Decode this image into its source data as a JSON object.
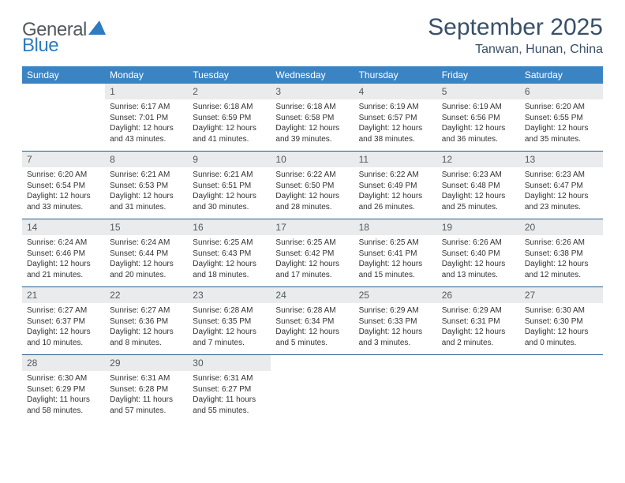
{
  "logo": {
    "part1": "General",
    "part2": "Blue",
    "triangle_color": "#2f7bbf"
  },
  "title": "September 2025",
  "location": "Tanwan, Hunan, China",
  "colors": {
    "header_bg": "#3b84c4",
    "header_text": "#ffffff",
    "daynum_bg": "#e9ebec",
    "week_divider": "#2a5d8a",
    "title_color": "#38506a"
  },
  "day_labels": [
    "Sunday",
    "Monday",
    "Tuesday",
    "Wednesday",
    "Thursday",
    "Friday",
    "Saturday"
  ],
  "weeks": [
    [
      null,
      {
        "n": "1",
        "sr": "Sunrise: 6:17 AM",
        "ss": "Sunset: 7:01 PM",
        "dl": "Daylight: 12 hours and 43 minutes."
      },
      {
        "n": "2",
        "sr": "Sunrise: 6:18 AM",
        "ss": "Sunset: 6:59 PM",
        "dl": "Daylight: 12 hours and 41 minutes."
      },
      {
        "n": "3",
        "sr": "Sunrise: 6:18 AM",
        "ss": "Sunset: 6:58 PM",
        "dl": "Daylight: 12 hours and 39 minutes."
      },
      {
        "n": "4",
        "sr": "Sunrise: 6:19 AM",
        "ss": "Sunset: 6:57 PM",
        "dl": "Daylight: 12 hours and 38 minutes."
      },
      {
        "n": "5",
        "sr": "Sunrise: 6:19 AM",
        "ss": "Sunset: 6:56 PM",
        "dl": "Daylight: 12 hours and 36 minutes."
      },
      {
        "n": "6",
        "sr": "Sunrise: 6:20 AM",
        "ss": "Sunset: 6:55 PM",
        "dl": "Daylight: 12 hours and 35 minutes."
      }
    ],
    [
      {
        "n": "7",
        "sr": "Sunrise: 6:20 AM",
        "ss": "Sunset: 6:54 PM",
        "dl": "Daylight: 12 hours and 33 minutes."
      },
      {
        "n": "8",
        "sr": "Sunrise: 6:21 AM",
        "ss": "Sunset: 6:53 PM",
        "dl": "Daylight: 12 hours and 31 minutes."
      },
      {
        "n": "9",
        "sr": "Sunrise: 6:21 AM",
        "ss": "Sunset: 6:51 PM",
        "dl": "Daylight: 12 hours and 30 minutes."
      },
      {
        "n": "10",
        "sr": "Sunrise: 6:22 AM",
        "ss": "Sunset: 6:50 PM",
        "dl": "Daylight: 12 hours and 28 minutes."
      },
      {
        "n": "11",
        "sr": "Sunrise: 6:22 AM",
        "ss": "Sunset: 6:49 PM",
        "dl": "Daylight: 12 hours and 26 minutes."
      },
      {
        "n": "12",
        "sr": "Sunrise: 6:23 AM",
        "ss": "Sunset: 6:48 PM",
        "dl": "Daylight: 12 hours and 25 minutes."
      },
      {
        "n": "13",
        "sr": "Sunrise: 6:23 AM",
        "ss": "Sunset: 6:47 PM",
        "dl": "Daylight: 12 hours and 23 minutes."
      }
    ],
    [
      {
        "n": "14",
        "sr": "Sunrise: 6:24 AM",
        "ss": "Sunset: 6:46 PM",
        "dl": "Daylight: 12 hours and 21 minutes."
      },
      {
        "n": "15",
        "sr": "Sunrise: 6:24 AM",
        "ss": "Sunset: 6:44 PM",
        "dl": "Daylight: 12 hours and 20 minutes."
      },
      {
        "n": "16",
        "sr": "Sunrise: 6:25 AM",
        "ss": "Sunset: 6:43 PM",
        "dl": "Daylight: 12 hours and 18 minutes."
      },
      {
        "n": "17",
        "sr": "Sunrise: 6:25 AM",
        "ss": "Sunset: 6:42 PM",
        "dl": "Daylight: 12 hours and 17 minutes."
      },
      {
        "n": "18",
        "sr": "Sunrise: 6:25 AM",
        "ss": "Sunset: 6:41 PM",
        "dl": "Daylight: 12 hours and 15 minutes."
      },
      {
        "n": "19",
        "sr": "Sunrise: 6:26 AM",
        "ss": "Sunset: 6:40 PM",
        "dl": "Daylight: 12 hours and 13 minutes."
      },
      {
        "n": "20",
        "sr": "Sunrise: 6:26 AM",
        "ss": "Sunset: 6:38 PM",
        "dl": "Daylight: 12 hours and 12 minutes."
      }
    ],
    [
      {
        "n": "21",
        "sr": "Sunrise: 6:27 AM",
        "ss": "Sunset: 6:37 PM",
        "dl": "Daylight: 12 hours and 10 minutes."
      },
      {
        "n": "22",
        "sr": "Sunrise: 6:27 AM",
        "ss": "Sunset: 6:36 PM",
        "dl": "Daylight: 12 hours and 8 minutes."
      },
      {
        "n": "23",
        "sr": "Sunrise: 6:28 AM",
        "ss": "Sunset: 6:35 PM",
        "dl": "Daylight: 12 hours and 7 minutes."
      },
      {
        "n": "24",
        "sr": "Sunrise: 6:28 AM",
        "ss": "Sunset: 6:34 PM",
        "dl": "Daylight: 12 hours and 5 minutes."
      },
      {
        "n": "25",
        "sr": "Sunrise: 6:29 AM",
        "ss": "Sunset: 6:33 PM",
        "dl": "Daylight: 12 hours and 3 minutes."
      },
      {
        "n": "26",
        "sr": "Sunrise: 6:29 AM",
        "ss": "Sunset: 6:31 PM",
        "dl": "Daylight: 12 hours and 2 minutes."
      },
      {
        "n": "27",
        "sr": "Sunrise: 6:30 AM",
        "ss": "Sunset: 6:30 PM",
        "dl": "Daylight: 12 hours and 0 minutes."
      }
    ],
    [
      {
        "n": "28",
        "sr": "Sunrise: 6:30 AM",
        "ss": "Sunset: 6:29 PM",
        "dl": "Daylight: 11 hours and 58 minutes."
      },
      {
        "n": "29",
        "sr": "Sunrise: 6:31 AM",
        "ss": "Sunset: 6:28 PM",
        "dl": "Daylight: 11 hours and 57 minutes."
      },
      {
        "n": "30",
        "sr": "Sunrise: 6:31 AM",
        "ss": "Sunset: 6:27 PM",
        "dl": "Daylight: 11 hours and 55 minutes."
      },
      null,
      null,
      null,
      null
    ]
  ]
}
